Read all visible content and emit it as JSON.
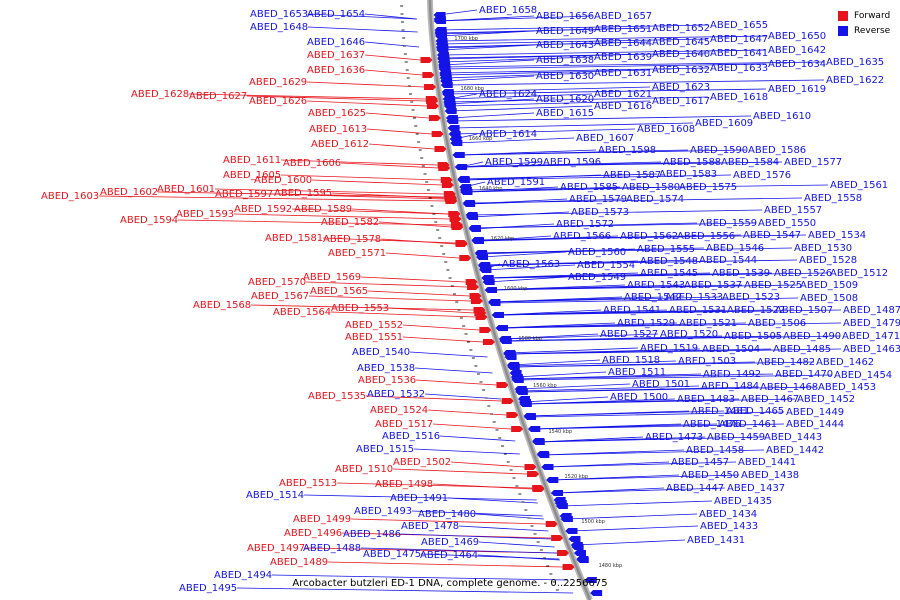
{
  "caption": "Arcobacter butzleri ED-1 DNA, complete genome. - 0..2256675",
  "legend": {
    "forward_label": "Forward",
    "reverse_label": "Reverse",
    "forward_color": "#e8141c",
    "reverse_color": "#1414e8"
  },
  "colors": {
    "forward": "#e8141c",
    "reverse": "#1414e8",
    "backbone": "#8c8c8c"
  },
  "scale_ticks": [
    "1700 kbp",
    "1680 kbp",
    "1660 kbp",
    "1640 kbp",
    "1620 kbp",
    "1600 kbp",
    "1580 kbp",
    "1560 kbp",
    "1540 kbp",
    "1520 kbp",
    "1500 kbp",
    "1480 kbp"
  ],
  "genes": [
    {
      "name": "ABED_1653",
      "strand": "reverse"
    },
    {
      "name": "ABED_1654",
      "strand": "reverse"
    },
    {
      "name": "ABED_1648",
      "strand": "reverse"
    },
    {
      "name": "ABED_1646",
      "strand": "reverse"
    },
    {
      "name": "ABED_1637",
      "strand": "forward"
    },
    {
      "name": "ABED_1636",
      "strand": "forward"
    },
    {
      "name": "ABED_1629",
      "strand": "forward"
    },
    {
      "name": "ABED_1628",
      "strand": "forward"
    },
    {
      "name": "ABED_1627",
      "strand": "forward"
    },
    {
      "name": "ABED_1626",
      "strand": "forward"
    },
    {
      "name": "ABED_1625",
      "strand": "forward"
    },
    {
      "name": "ABED_1613",
      "strand": "forward"
    },
    {
      "name": "ABED_1612",
      "strand": "forward"
    },
    {
      "name": "ABED_1611",
      "strand": "forward"
    },
    {
      "name": "ABED_1606",
      "strand": "forward"
    },
    {
      "name": "ABED_1605",
      "strand": "forward"
    },
    {
      "name": "ABED_1600",
      "strand": "forward"
    },
    {
      "name": "ABED_1601",
      "strand": "forward"
    },
    {
      "name": "ABED_1602",
      "strand": "forward"
    },
    {
      "name": "ABED_1603",
      "strand": "forward"
    },
    {
      "name": "ABED_1597",
      "strand": "forward"
    },
    {
      "name": "ABED_1595",
      "strand": "forward"
    },
    {
      "name": "ABED_1592",
      "strand": "forward"
    },
    {
      "name": "ABED_1593",
      "strand": "forward"
    },
    {
      "name": "ABED_1589",
      "strand": "forward"
    },
    {
      "name": "ABED_1594",
      "strand": "forward"
    },
    {
      "name": "ABED_1582",
      "strand": "forward"
    },
    {
      "name": "ABED_1581",
      "strand": "forward"
    },
    {
      "name": "ABED_1578",
      "strand": "forward"
    },
    {
      "name": "ABED_1571",
      "strand": "forward"
    },
    {
      "name": "ABED_1570",
      "strand": "forward"
    },
    {
      "name": "ABED_1569",
      "strand": "forward"
    },
    {
      "name": "ABED_1567",
      "strand": "forward"
    },
    {
      "name": "ABED_1565",
      "strand": "forward"
    },
    {
      "name": "ABED_1568",
      "strand": "forward"
    },
    {
      "name": "ABED_1564",
      "strand": "forward"
    },
    {
      "name": "ABED_1553",
      "strand": "forward"
    },
    {
      "name": "ABED_1552",
      "strand": "forward"
    },
    {
      "name": "ABED_1551",
      "strand": "forward"
    },
    {
      "name": "ABED_1540",
      "strand": "reverse"
    },
    {
      "name": "ABED_1538",
      "strand": "reverse"
    },
    {
      "name": "ABED_1536",
      "strand": "forward"
    },
    {
      "name": "ABED_1535",
      "strand": "forward"
    },
    {
      "name": "ABED_1532",
      "strand": "reverse"
    },
    {
      "name": "ABED_1524",
      "strand": "forward"
    },
    {
      "name": "ABED_1517",
      "strand": "forward"
    },
    {
      "name": "ABED_1516",
      "strand": "reverse"
    },
    {
      "name": "ABED_1515",
      "strand": "reverse"
    },
    {
      "name": "ABED_1502",
      "strand": "forward"
    },
    {
      "name": "ABED_1510",
      "strand": "forward"
    },
    {
      "name": "ABED_1513",
      "strand": "forward"
    },
    {
      "name": "ABED_1498",
      "strand": "forward"
    },
    {
      "name": "ABED_1514",
      "strand": "reverse"
    },
    {
      "name": "ABED_1491",
      "strand": "reverse"
    },
    {
      "name": "ABED_1493",
      "strand": "reverse"
    },
    {
      "name": "ABED_1480",
      "strand": "reverse"
    },
    {
      "name": "ABED_1499",
      "strand": "forward"
    },
    {
      "name": "ABED_1478",
      "strand": "reverse"
    },
    {
      "name": "ABED_1496",
      "strand": "forward"
    },
    {
      "name": "ABED_1486",
      "strand": "reverse"
    },
    {
      "name": "ABED_1469",
      "strand": "reverse"
    },
    {
      "name": "ABED_1497",
      "strand": "forward"
    },
    {
      "name": "ABED_1488",
      "strand": "reverse"
    },
    {
      "name": "ABED_1475",
      "strand": "reverse"
    },
    {
      "name": "ABED_1464",
      "strand": "reverse"
    },
    {
      "name": "ABED_1489",
      "strand": "forward"
    },
    {
      "name": "ABED_1494",
      "strand": "reverse"
    },
    {
      "name": "ABED_1495",
      "strand": "reverse"
    },
    {
      "name": "ABED_1658",
      "strand": "reverse"
    },
    {
      "name": "ABED_1656",
      "strand": "reverse"
    },
    {
      "name": "ABED_1657",
      "strand": "reverse"
    },
    {
      "name": "ABED_1655",
      "strand": "reverse"
    },
    {
      "name": "ABED_1649",
      "strand": "reverse"
    },
    {
      "name": "ABED_1651",
      "strand": "reverse"
    },
    {
      "name": "ABED_1652",
      "strand": "reverse"
    },
    {
      "name": "ABED_1647",
      "strand": "reverse"
    },
    {
      "name": "ABED_1650",
      "strand": "reverse"
    },
    {
      "name": "ABED_1643",
      "strand": "reverse"
    },
    {
      "name": "ABED_1644",
      "strand": "reverse"
    },
    {
      "name": "ABED_1645",
      "strand": "reverse"
    },
    {
      "name": "ABED_1642",
      "strand": "reverse"
    },
    {
      "name": "ABED_1638",
      "strand": "reverse"
    },
    {
      "name": "ABED_1639",
      "strand": "reverse"
    },
    {
      "name": "ABED_1640",
      "strand": "reverse"
    },
    {
      "name": "ABED_1641",
      "strand": "reverse"
    },
    {
      "name": "ABED_1633",
      "strand": "reverse"
    },
    {
      "name": "ABED_1634",
      "strand": "reverse"
    },
    {
      "name": "ABED_1635",
      "strand": "reverse"
    },
    {
      "name": "ABED_1630",
      "strand": "reverse"
    },
    {
      "name": "ABED_1631",
      "strand": "reverse"
    },
    {
      "name": "ABED_1632",
      "strand": "reverse"
    },
    {
      "name": "ABED_1622",
      "strand": "reverse"
    },
    {
      "name": "ABED_1624",
      "strand": "reverse"
    },
    {
      "name": "ABED_1623",
      "strand": "reverse"
    },
    {
      "name": "ABED_1619",
      "strand": "reverse"
    },
    {
      "name": "ABED_1620",
      "strand": "reverse"
    },
    {
      "name": "ABED_1621",
      "strand": "reverse"
    },
    {
      "name": "ABED_1618",
      "strand": "reverse"
    },
    {
      "name": "ABED_1615",
      "strand": "reverse"
    },
    {
      "name": "ABED_1616",
      "strand": "reverse"
    },
    {
      "name": "ABED_1617",
      "strand": "reverse"
    },
    {
      "name": "ABED_1610",
      "strand": "reverse"
    },
    {
      "name": "ABED_1609",
      "strand": "reverse"
    },
    {
      "name": "ABED_1614",
      "strand": "reverse"
    },
    {
      "name": "ABED_1608",
      "strand": "reverse"
    },
    {
      "name": "ABED_1607",
      "strand": "reverse"
    },
    {
      "name": "ABED_1590",
      "strand": "reverse"
    },
    {
      "name": "ABED_1586",
      "strand": "reverse"
    },
    {
      "name": "ABED_1598",
      "strand": "reverse"
    },
    {
      "name": "ABED_1599",
      "strand": "reverse"
    },
    {
      "name": "ABED_1596",
      "strand": "reverse"
    },
    {
      "name": "ABED_1588",
      "strand": "reverse"
    },
    {
      "name": "ABED_1584",
      "strand": "reverse"
    },
    {
      "name": "ABED_1577",
      "strand": "reverse"
    },
    {
      "name": "ABED_1587",
      "strand": "reverse"
    },
    {
      "name": "ABED_1583",
      "strand": "reverse"
    },
    {
      "name": "ABED_1576",
      "strand": "reverse"
    },
    {
      "name": "ABED_1591",
      "strand": "reverse"
    },
    {
      "name": "ABED_1585",
      "strand": "reverse"
    },
    {
      "name": "ABED_1580",
      "strand": "reverse"
    },
    {
      "name": "ABED_1575",
      "strand": "reverse"
    },
    {
      "name": "ABED_1561",
      "strand": "reverse"
    },
    {
      "name": "ABED_1579",
      "strand": "reverse"
    },
    {
      "name": "ABED_1574",
      "strand": "reverse"
    },
    {
      "name": "ABED_1558",
      "strand": "reverse"
    },
    {
      "name": "ABED_1573",
      "strand": "reverse"
    },
    {
      "name": "ABED_1557",
      "strand": "reverse"
    },
    {
      "name": "ABED_1572",
      "strand": "reverse"
    },
    {
      "name": "ABED_1559",
      "strand": "reverse"
    },
    {
      "name": "ABED_1550",
      "strand": "reverse"
    },
    {
      "name": "ABED_1566",
      "strand": "reverse"
    },
    {
      "name": "ABED_1562",
      "strand": "reverse"
    },
    {
      "name": "ABED_1556",
      "strand": "reverse"
    },
    {
      "name": "ABED_1547",
      "strand": "reverse"
    },
    {
      "name": "ABED_1534",
      "strand": "reverse"
    },
    {
      "name": "ABED_1560",
      "strand": "reverse"
    },
    {
      "name": "ABED_1555",
      "strand": "reverse"
    },
    {
      "name": "ABED_1546",
      "strand": "reverse"
    },
    {
      "name": "ABED_1530",
      "strand": "reverse"
    },
    {
      "name": "ABED_1563",
      "strand": "reverse"
    },
    {
      "name": "ABED_1554",
      "strand": "reverse"
    },
    {
      "name": "ABED_1548",
      "strand": "reverse"
    },
    {
      "name": "ABED_1544",
      "strand": "reverse"
    },
    {
      "name": "ABED_1528",
      "strand": "reverse"
    },
    {
      "name": "ABED_1549",
      "strand": "reverse"
    },
    {
      "name": "ABED_1545",
      "strand": "reverse"
    },
    {
      "name": "ABED_1539",
      "strand": "reverse"
    },
    {
      "name": "ABED_1526",
      "strand": "reverse"
    },
    {
      "name": "ABED_1512",
      "strand": "reverse"
    },
    {
      "name": "ABED_1543",
      "strand": "reverse"
    },
    {
      "name": "ABED_1537",
      "strand": "reverse"
    },
    {
      "name": "ABED_1525",
      "strand": "reverse"
    },
    {
      "name": "ABED_1509",
      "strand": "reverse"
    },
    {
      "name": "ABED_1542",
      "strand": "reverse"
    },
    {
      "name": "ABED_1533",
      "strand": "reverse"
    },
    {
      "name": "ABED_1523",
      "strand": "reverse"
    },
    {
      "name": "ABED_1508",
      "strand": "reverse"
    },
    {
      "name": "ABED_1541",
      "strand": "reverse"
    },
    {
      "name": "ABED_1531",
      "strand": "reverse"
    },
    {
      "name": "ABED_1522",
      "strand": "reverse"
    },
    {
      "name": "ABED_1507",
      "strand": "reverse"
    },
    {
      "name": "ABED_1487",
      "strand": "reverse"
    },
    {
      "name": "ABED_1529",
      "strand": "reverse"
    },
    {
      "name": "ABED_1521",
      "strand": "reverse"
    },
    {
      "name": "ABED_1506",
      "strand": "reverse"
    },
    {
      "name": "ABED_1479",
      "strand": "reverse"
    },
    {
      "name": "ABED_1527",
      "strand": "reverse"
    },
    {
      "name": "ABED_1520",
      "strand": "reverse"
    },
    {
      "name": "ABED_1505",
      "strand": "reverse"
    },
    {
      "name": "ABED_1490",
      "strand": "reverse"
    },
    {
      "name": "ABED_1471",
      "strand": "reverse"
    },
    {
      "name": "ABED_1519",
      "strand": "reverse"
    },
    {
      "name": "ABED_1504",
      "strand": "reverse"
    },
    {
      "name": "ABED_1485",
      "strand": "reverse"
    },
    {
      "name": "ABED_1463",
      "strand": "reverse"
    },
    {
      "name": "ABED_1518",
      "strand": "reverse"
    },
    {
      "name": "ABED_1503",
      "strand": "reverse"
    },
    {
      "name": "ABED_1482",
      "strand": "reverse"
    },
    {
      "name": "ABED_1462",
      "strand": "reverse"
    },
    {
      "name": "ABED_1511",
      "strand": "reverse"
    },
    {
      "name": "ABED_1492",
      "strand": "reverse"
    },
    {
      "name": "ABED_1470",
      "strand": "reverse"
    },
    {
      "name": "ABED_1454",
      "strand": "reverse"
    },
    {
      "name": "ABED_1501",
      "strand": "reverse"
    },
    {
      "name": "ABED_1484",
      "strand": "reverse"
    },
    {
      "name": "ABED_1468",
      "strand": "reverse"
    },
    {
      "name": "ABED_1453",
      "strand": "reverse"
    },
    {
      "name": "ABED_1500",
      "strand": "reverse"
    },
    {
      "name": "ABED_1483",
      "strand": "reverse"
    },
    {
      "name": "ABED_1467",
      "strand": "reverse"
    },
    {
      "name": "ABED_1452",
      "strand": "reverse"
    },
    {
      "name": "ABED_1481",
      "strand": "reverse"
    },
    {
      "name": "ABED_1465",
      "strand": "reverse"
    },
    {
      "name": "ABED_1449",
      "strand": "reverse"
    },
    {
      "name": "ABED_1476",
      "strand": "reverse"
    },
    {
      "name": "ABED_1461",
      "strand": "reverse"
    },
    {
      "name": "ABED_1444",
      "strand": "reverse"
    },
    {
      "name": "ABED_1473",
      "strand": "reverse"
    },
    {
      "name": "ABED_1459",
      "strand": "reverse"
    },
    {
      "name": "ABED_1443",
      "strand": "reverse"
    },
    {
      "name": "ABED_1458",
      "strand": "reverse"
    },
    {
      "name": "ABED_1442",
      "strand": "reverse"
    },
    {
      "name": "ABED_1457",
      "strand": "reverse"
    },
    {
      "name": "ABED_1441",
      "strand": "reverse"
    },
    {
      "name": "ABED_1450",
      "strand": "reverse"
    },
    {
      "name": "ABED_1438",
      "strand": "reverse"
    },
    {
      "name": "ABED_1447",
      "strand": "reverse"
    },
    {
      "name": "ABED_1437",
      "strand": "reverse"
    },
    {
      "name": "ABED_1435",
      "strand": "reverse"
    },
    {
      "name": "ABED_1434",
      "strand": "reverse"
    },
    {
      "name": "ABED_1433",
      "strand": "reverse"
    },
    {
      "name": "ABED_1431",
      "strand": "reverse"
    }
  ]
}
